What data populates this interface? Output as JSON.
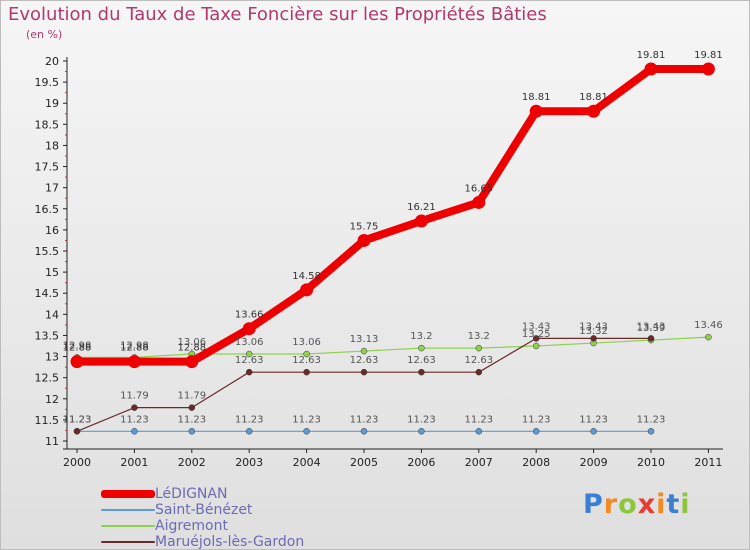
{
  "chart_data": {
    "type": "line",
    "title": "Evolution du Taux de Taxe Foncière sur les Propriétés Bâties",
    "ylabel": "(en %)",
    "xlabel": "",
    "ylim": [
      11,
      20
    ],
    "yticks": [
      "11",
      "11.5",
      "12",
      "12.5",
      "13",
      "13.5",
      "14",
      "14.5",
      "15",
      "15.5",
      "16",
      "16.5",
      "17",
      "17.5",
      "18",
      "18.5",
      "19",
      "19.5",
      "20"
    ],
    "x": [
      "2000",
      "2001",
      "2002",
      "2003",
      "2004",
      "2005",
      "2006",
      "2007",
      "2008",
      "2009",
      "2010",
      "2011"
    ],
    "series": [
      {
        "name": "LéDIGNAN",
        "color": "#ee0000",
        "values": [
          12.88,
          12.88,
          12.88,
          13.66,
          14.58,
          15.75,
          16.21,
          16.65,
          18.81,
          18.81,
          19.81,
          19.81
        ],
        "labels": [
          "12.88",
          "12.88",
          "12.88",
          "13.66",
          "14.58",
          "15.75",
          "16.21",
          "16.65",
          "18.81",
          "18.81",
          "19.81",
          "19.81"
        ]
      },
      {
        "name": "Saint-Bénézet",
        "color": "#5b9bd5",
        "values": [
          11.23,
          11.23,
          11.23,
          11.23,
          11.23,
          11.23,
          11.23,
          11.23,
          11.23,
          11.23,
          11.23,
          null
        ],
        "labels": [
          "11.23",
          "11.23",
          "11.23",
          "11.23",
          "11.23",
          "11.23",
          "11.23",
          "11.23",
          "11.23",
          "11.23",
          "11.23",
          ""
        ]
      },
      {
        "name": "Aigremont",
        "color": "#8fd14f",
        "values": [
          12.98,
          12.98,
          13.06,
          13.06,
          13.06,
          13.13,
          13.2,
          13.2,
          13.25,
          13.32,
          13.39,
          13.46
        ],
        "labels": [
          "12.98",
          "12.98",
          "13.06",
          "13.06",
          "13.06",
          "13.13",
          "13.2",
          "13.2",
          "13.25",
          "13.32",
          "13.39",
          "13.46"
        ]
      },
      {
        "name": "Maruéjols-lès-Gardon",
        "color": "#6b2a2a",
        "values": [
          11.23,
          11.79,
          11.79,
          12.63,
          12.63,
          12.63,
          12.63,
          12.63,
          13.43,
          13.43,
          13.43,
          null
        ],
        "labels": [
          "11.23",
          "11.79",
          "11.79",
          "12.63",
          "12.63",
          "12.63",
          "12.63",
          "12.63",
          "13.43",
          "13.43",
          "13.43",
          ""
        ]
      }
    ]
  },
  "logo": {
    "letters": [
      "P",
      "r",
      "o",
      "x",
      "i",
      "t",
      "i"
    ],
    "colors": [
      "#3a7fd4",
      "#f08a24",
      "#8cc63f",
      "#e63b2e",
      "#f08a24",
      "#3a7fd4",
      "#8cc63f"
    ]
  }
}
